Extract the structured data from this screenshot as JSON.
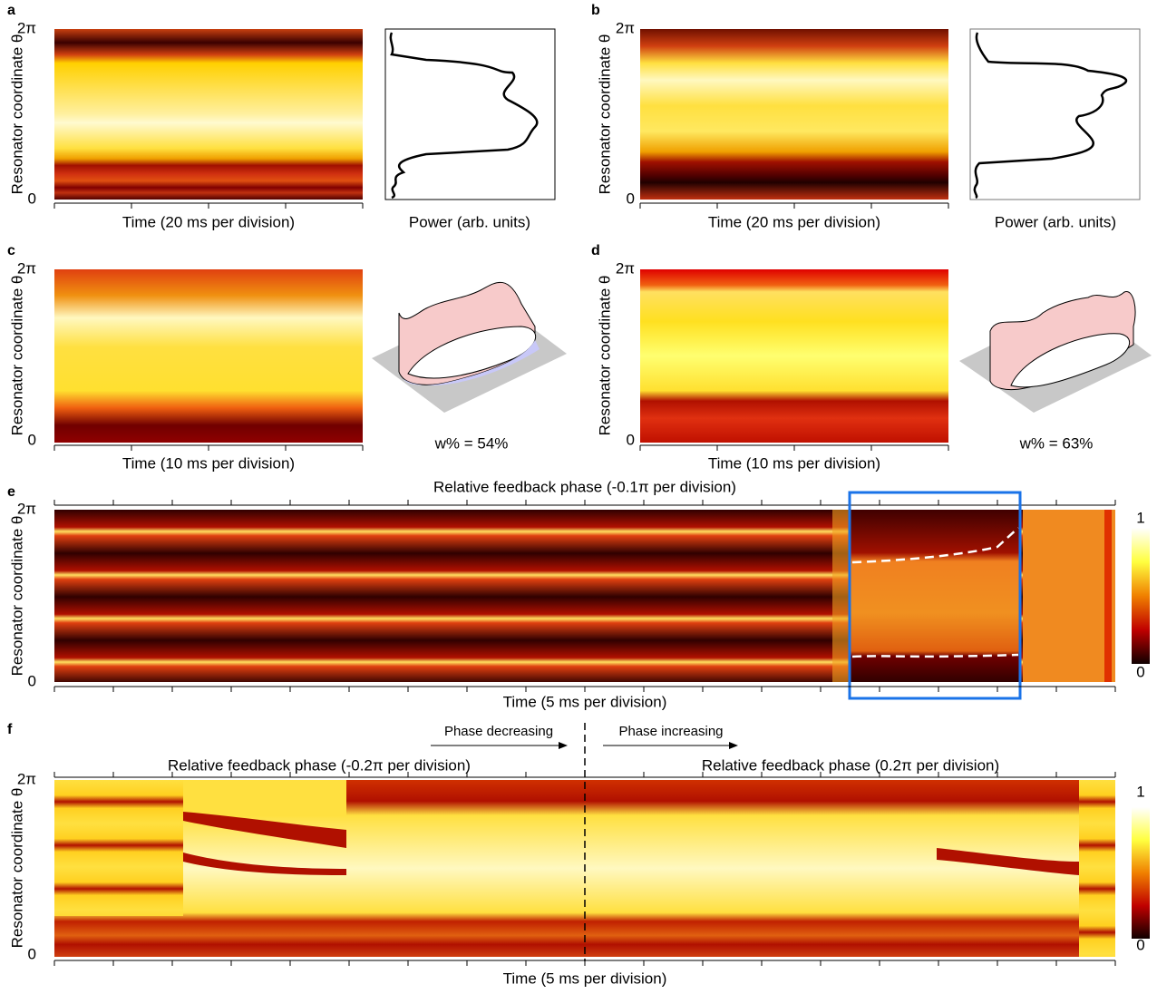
{
  "panels": [
    {
      "label": "a",
      "y_top": "2π",
      "y_bottom": "0",
      "y_title": "Resonator coordinate θ",
      "x_title": "Time (20 ms per division)",
      "side_title": "Power (arb. units)"
    },
    {
      "label": "b",
      "y_top": "2π",
      "y_bottom": "0",
      "y_title": "Resonator coordinate θ",
      "x_title": "Time (20 ms per division)",
      "side_title": "Power (arb. units)"
    },
    {
      "label": "c",
      "y_top": "2π",
      "y_bottom": "0",
      "y_title": "Resonator coordinate θ",
      "x_title": "Time (10 ms per division)",
      "side_title": "w% = 54%"
    },
    {
      "label": "d",
      "y_top": "2π",
      "y_bottom": "0",
      "y_title": "Resonator coordinate θ",
      "x_title": "Time (10 ms per division)",
      "side_title": "w% = 63%"
    },
    {
      "label": "e",
      "y_top": "2π",
      "y_bottom": "0",
      "y_title": "Resonator coordinate θ",
      "x_title": "Time (5 ms per division)",
      "top_title": "Relative feedback phase (-0.1π per division)",
      "colorbar_top": "1",
      "colorbar_bottom": "0"
    },
    {
      "label": "f",
      "y_top": "2π",
      "y_bottom": "0",
      "y_title": "Resonator coordinate θ",
      "x_title": "Time (5 ms per division)",
      "left_title": "Relative feedback phase (-0.2π per division)",
      "right_title": "Relative feedback phase (0.2π per division)",
      "arrow_left": "Phase decreasing",
      "arrow_right": "Phase increasing",
      "colorbar_top": "1",
      "colorbar_bottom": "0"
    }
  ]
}
